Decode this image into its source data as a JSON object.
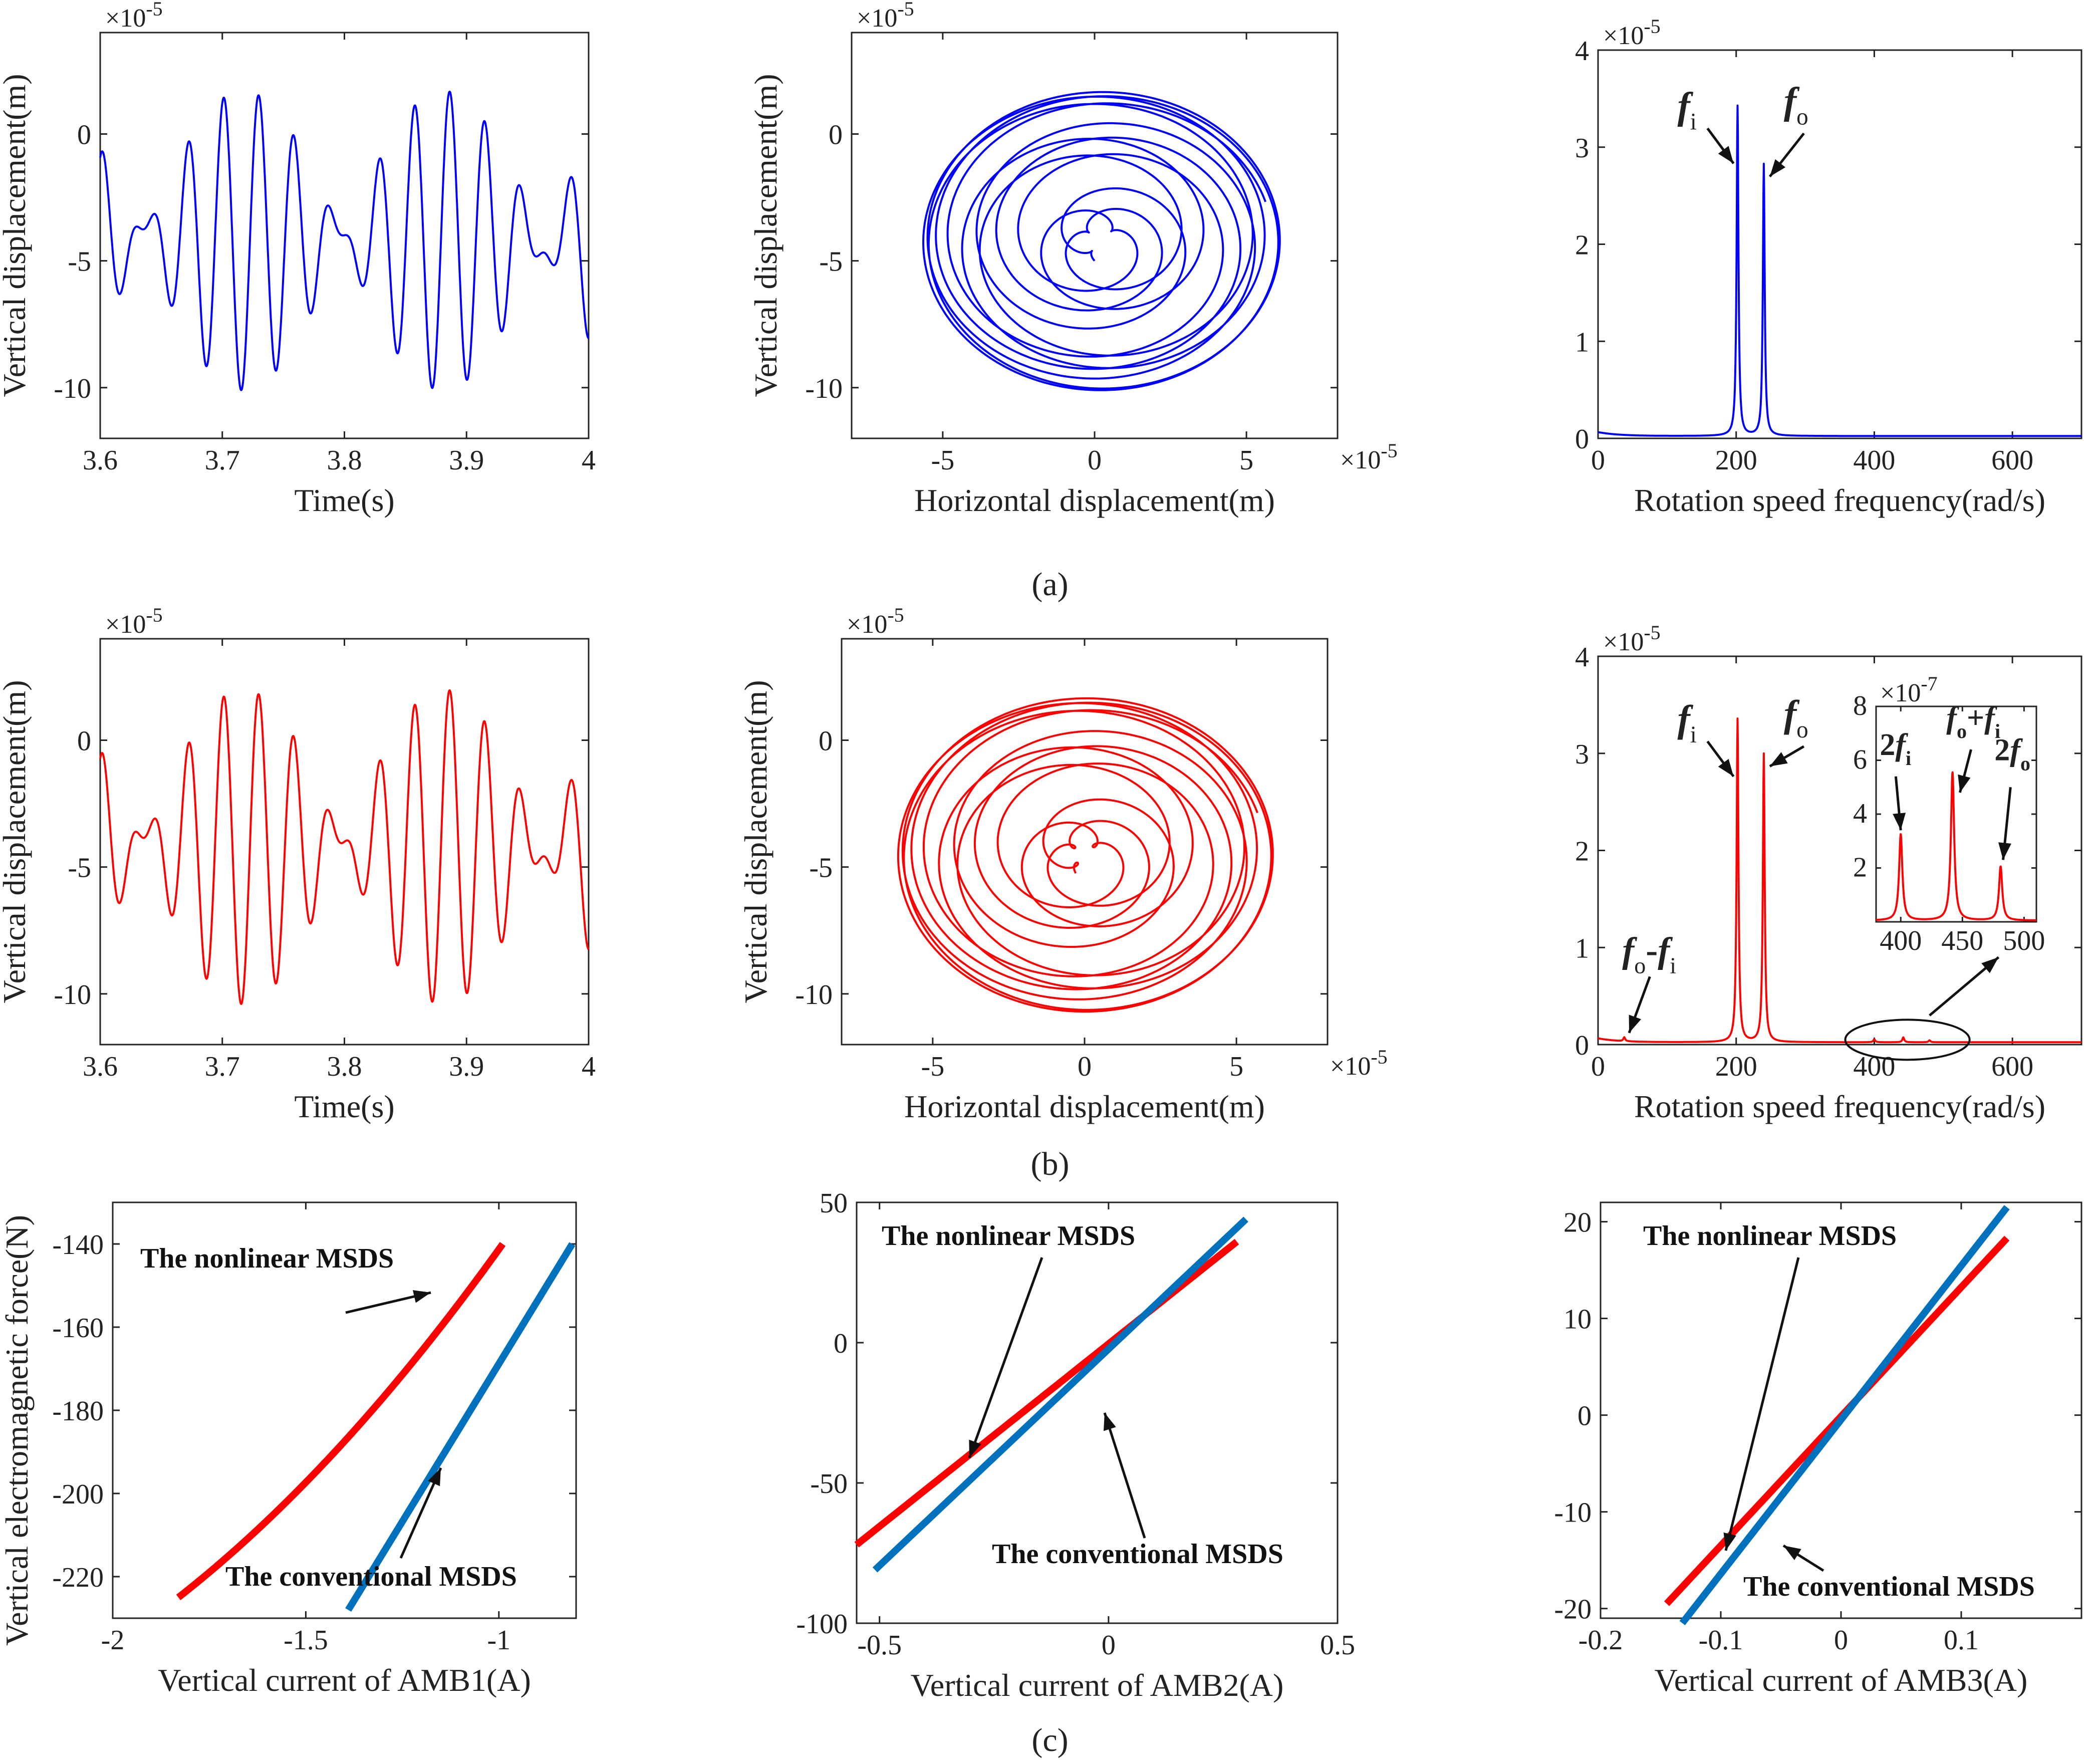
{
  "captions": [
    "(a)",
    "(b)",
    "(c)"
  ],
  "colors": {
    "blue": "#0000FF",
    "red": "#FF0000",
    "steel_blue": "#0072BD",
    "axis": "#222222"
  },
  "chart_data": [
    {
      "id": "a1",
      "type": "line",
      "color": "#0000FF",
      "xlabel": "Time(s)",
      "ylabel": "Vertical displacement(m)",
      "xlim": [
        3.6,
        4.0
      ],
      "ylim": [
        -12,
        4
      ],
      "y_exponent": "×10^-5",
      "xticks": [
        "3.6",
        "3.7",
        "3.8",
        "3.9",
        "4"
      ],
      "yticks": [
        "0",
        "-5",
        "-10"
      ],
      "series": [
        {
          "name": "vertical displacement",
          "signal": {
            "mean": -4.2,
            "a1": 3.2,
            "f1": 32.1,
            "a2": 2.7,
            "f2": 38.2,
            "t0": 3.6,
            "t1": 4.0
          }
        }
      ]
    },
    {
      "id": "a2",
      "type": "line",
      "color": "#0000FF",
      "xlabel": "Horizontal displacement(m)",
      "ylabel": "Vertical displacement(m)",
      "xlim": [
        -8,
        8
      ],
      "ylim": [
        -12,
        4
      ],
      "x_exponent": "×10^-5",
      "y_exponent": "×10^-5",
      "xticks": [
        "-5",
        "0",
        "5"
      ],
      "yticks": [
        "0",
        "-5",
        "-10"
      ],
      "series": [
        {
          "name": "orbit",
          "orbit": {
            "cx": 0.2,
            "cy": -4.2,
            "r1": 3.2,
            "r2": 2.7,
            "w1": 32.1,
            "w2": 38.2,
            "T": 0.4
          }
        }
      ]
    },
    {
      "id": "a3",
      "type": "line",
      "color": "#0000FF",
      "xlabel": "Rotation speed frequency(rad/s)",
      "ylabel": "",
      "xlim": [
        0,
        700
      ],
      "ylim": [
        0,
        4
      ],
      "y_exponent": "×10^-5",
      "xticks": [
        "0",
        "200",
        "400",
        "600"
      ],
      "yticks": [
        "0",
        "1",
        "2",
        "3",
        "4"
      ],
      "peaks": [
        {
          "x": 202,
          "y": 3.4
        },
        {
          "x": 240,
          "y": 2.8
        }
      ],
      "annotations": [
        "f",
        "i",
        "f",
        "o"
      ]
    },
    {
      "id": "b1",
      "type": "line",
      "color": "#FF0000",
      "xlabel": "Time(s)",
      "ylabel": "Vertical displacement(m)",
      "xlim": [
        3.6,
        4.0
      ],
      "ylim": [
        -12,
        4
      ],
      "y_exponent": "×10^-5",
      "xticks": [
        "3.6",
        "3.7",
        "3.8",
        "3.9",
        "4"
      ],
      "yticks": [
        "0",
        "-5",
        "-10"
      ],
      "series": [
        {
          "name": "vertical displacement",
          "signal": {
            "mean": -4.2,
            "a1": 3.3,
            "f1": 32.1,
            "a2": 2.9,
            "f2": 38.2,
            "t0": 3.6,
            "t1": 4.0
          }
        }
      ]
    },
    {
      "id": "b2",
      "type": "line",
      "color": "#FF0000",
      "xlabel": "Horizontal displacement(m)",
      "ylabel": "Vertical displacement(m)",
      "xlim": [
        -8,
        8
      ],
      "ylim": [
        -12,
        4
      ],
      "x_exponent": "×10^-5",
      "y_exponent": "×10^-5",
      "xticks": [
        "-5",
        "0",
        "5"
      ],
      "yticks": [
        "0",
        "-5",
        "-10"
      ],
      "series": [
        {
          "name": "orbit",
          "orbit": {
            "cx": 0.0,
            "cy": -4.5,
            "r1": 3.3,
            "r2": 2.9,
            "w1": 32.1,
            "w2": 38.2,
            "T": 0.4
          }
        }
      ]
    },
    {
      "id": "b3",
      "type": "line",
      "color": "#FF0000",
      "xlabel": "Rotation speed frequency(rad/s)",
      "ylabel": "",
      "xlim": [
        0,
        700
      ],
      "ylim": [
        0,
        4
      ],
      "y_exponent": "×10^-5",
      "xticks": [
        "0",
        "200",
        "400",
        "600"
      ],
      "yticks": [
        "0",
        "1",
        "2",
        "3",
        "4"
      ],
      "peaks": [
        {
          "x": 38,
          "y": 0.04
        },
        {
          "x": 202,
          "y": 3.33
        },
        {
          "x": 240,
          "y": 2.97
        },
        {
          "x": 400,
          "y": 0.03
        },
        {
          "x": 442,
          "y": 0.05
        },
        {
          "x": 480,
          "y": 0.02
        }
      ],
      "annotations": [
        "f",
        "i",
        "f",
        "o",
        "f",
        "o",
        "-",
        "f",
        "i"
      ],
      "inset": {
        "xlim": [
          380,
          510
        ],
        "ylim": [
          0,
          8
        ],
        "y_exponent": "×10^-7",
        "xticks": [
          "400",
          "450",
          "500"
        ],
        "yticks": [
          "2",
          "4",
          "6",
          "8"
        ],
        "peaks": [
          {
            "x": 400,
            "y": 3.2
          },
          {
            "x": 442,
            "y": 5.5
          },
          {
            "x": 481,
            "y": 2.0
          }
        ],
        "annotations": [
          "2",
          "f",
          "i",
          "f",
          "o",
          "+",
          "f",
          "i",
          "2",
          "f",
          "o"
        ]
      }
    },
    {
      "id": "c1",
      "type": "line",
      "xlabel": "Vertical current of AMB1(A)",
      "ylabel": "Vertical electromagnetic force(N)",
      "xlim": [
        -2,
        -0.8
      ],
      "ylim": [
        -230,
        -130
      ],
      "xticks": [
        "-2",
        "-1.5",
        "-1"
      ],
      "yticks": [
        "-140",
        "-160",
        "-180",
        "-200",
        "-220"
      ],
      "series": [
        {
          "name": "The nonlinear MSDS",
          "color": "#FF0000",
          "x": [
            -1.83,
            -0.99
          ],
          "y": [
            -225,
            -140
          ],
          "curvature": -6
        },
        {
          "name": "The conventional MSDS",
          "color": "#0072BD",
          "x": [
            -1.39,
            -0.81
          ],
          "y": [
            -228,
            -140
          ],
          "curvature": 0
        }
      ],
      "annotations": [
        "The nonlinear MSDS",
        "The conventional MSDS"
      ]
    },
    {
      "id": "c2",
      "type": "line",
      "xlabel": "Vertical current of AMB2(A)",
      "ylabel": "",
      "xlim": [
        -0.55,
        0.5
      ],
      "ylim": [
        -100,
        50
      ],
      "xticks": [
        "-0.5",
        "0",
        "0.5"
      ],
      "yticks": [
        "50",
        "0",
        "-50",
        "-100"
      ],
      "series": [
        {
          "name": "The nonlinear MSDS",
          "color": "#FF0000",
          "x": [
            -0.55,
            0.28
          ],
          "y": [
            -72,
            36
          ],
          "curvature": 0
        },
        {
          "name": "The conventional MSDS",
          "color": "#0072BD",
          "x": [
            -0.51,
            0.3
          ],
          "y": [
            -81,
            44
          ],
          "curvature": 0
        }
      ],
      "annotations": [
        "The nonlinear MSDS",
        "The conventional MSDS"
      ]
    },
    {
      "id": "c3",
      "type": "line",
      "xlabel": "Vertical current of AMB3(A)",
      "ylabel": "",
      "xlim": [
        -0.2,
        0.2
      ],
      "ylim": [
        -21,
        22
      ],
      "xticks": [
        "-0.2",
        "-0.1",
        "0",
        "0.1"
      ],
      "yticks": [
        "20",
        "10",
        "0",
        "-10",
        "-20"
      ],
      "series": [
        {
          "name": "The nonlinear MSDS",
          "color": "#FF0000",
          "x": [
            -0.145,
            0.138
          ],
          "y": [
            -19.5,
            18.3
          ],
          "curvature": 0
        },
        {
          "name": "The conventional MSDS",
          "color": "#0072BD",
          "x": [
            -0.132,
            0.138
          ],
          "y": [
            -21.5,
            21.5
          ],
          "curvature": 0
        }
      ],
      "annotations": [
        "The nonlinear MSDS",
        "The conventional MSDS"
      ]
    }
  ]
}
